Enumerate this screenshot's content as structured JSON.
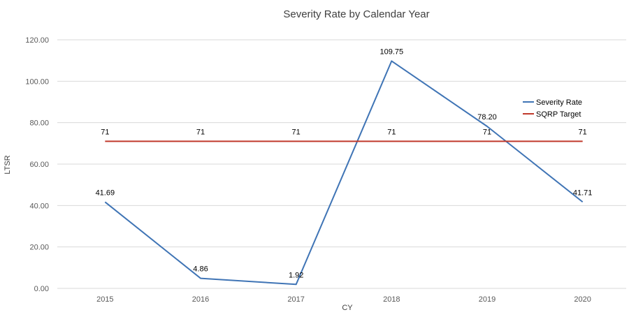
{
  "chart_data": {
    "type": "line",
    "title": "Severity Rate by Calendar Year",
    "xlabel": "CY",
    "ylabel": "LTSR",
    "categories": [
      "2015",
      "2016",
      "2017",
      "2018",
      "2019",
      "2020"
    ],
    "y_ticks": [
      "0.00",
      "20.00",
      "40.00",
      "60.00",
      "80.00",
      "100.00",
      "120.00"
    ],
    "ylim": [
      0,
      120
    ],
    "grid": true,
    "legend_position": "right",
    "series": [
      {
        "name": "Severity Rate",
        "color": "#3f74b5",
        "values": [
          41.69,
          4.86,
          1.92,
          109.75,
          78.2,
          41.71
        ],
        "labels": [
          "41.69",
          "4.86",
          "1.92",
          "109.75",
          "78.20",
          "41.71"
        ]
      },
      {
        "name": "SQRP Target",
        "color": "#c0392b",
        "values": [
          71,
          71,
          71,
          71,
          71,
          71
        ],
        "labels": [
          "71",
          "71",
          "71",
          "71",
          "71",
          "71"
        ]
      }
    ]
  }
}
